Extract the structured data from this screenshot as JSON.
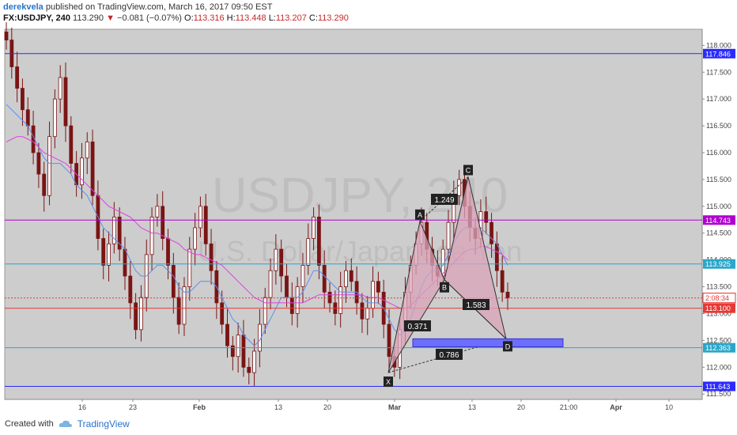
{
  "header": {
    "author": "derekvela",
    "published_text": "published on TradingView.com, March 16, 2017 09:50 EST",
    "symbol": "FX:USDJPY, 240",
    "last": "113.290",
    "change": "−0.081 (−0.07%)",
    "o_label": "O:",
    "o_val": "113.316",
    "h_label": "H:",
    "h_val": "113.448",
    "l_label": "L:",
    "l_val": "113.207",
    "c_label": "C:",
    "c_val": "113.290"
  },
  "footer": {
    "created_with": "Created with",
    "brand": "TradingView",
    "logo_icon": "tradingview-cloud-icon"
  },
  "chart_data": {
    "type": "candlestick",
    "watermark": {
      "line1": "USDJPY, 240",
      "line2": "U.S. Dollar/Japanese Yen"
    },
    "ylim": [
      111.4,
      118.3
    ],
    "y_ticks": [
      "118.000",
      "117.500",
      "117.000",
      "116.500",
      "116.000",
      "115.500",
      "115.000",
      "114.500",
      "114.000",
      "113.500",
      "113.000",
      "112.500",
      "112.000",
      "111.500"
    ],
    "x_ticks": [
      "16",
      "23",
      "Feb",
      "13",
      "20",
      "Mar",
      "13",
      "20",
      "21:00",
      "Apr",
      "10"
    ],
    "horizontal_lines": [
      {
        "value": 117.846,
        "label": "117.846",
        "color": "#2b2bff"
      },
      {
        "value": 114.743,
        "label": "114.743",
        "color": "#b000d0"
      },
      {
        "value": 113.925,
        "label": "113.925",
        "color": "#2aa7c9"
      },
      {
        "value": 113.1,
        "label": "113.100",
        "color": "#e53935"
      },
      {
        "value": 112.363,
        "label": "112.363",
        "color": "#2aa7c9"
      },
      {
        "value": 111.643,
        "label": "111.643",
        "color": "#2b2bff"
      }
    ],
    "price_labels": [
      {
        "value": 113.29,
        "label": "113.290",
        "color": "#e53935"
      },
      {
        "value": 113.1,
        "label": "2:08:34",
        "color": "#e53935"
      }
    ],
    "pattern": {
      "points": {
        "X": 111.9,
        "A": 114.72,
        "B": 113.63,
        "C": 115.55,
        "D": 112.53
      },
      "labels": [
        "X",
        "A",
        "B",
        "C",
        "D"
      ],
      "ratios": [
        "1.249",
        "0.371",
        "1.583",
        "0.786"
      ],
      "fill_color": "#d9a3b8"
    },
    "zone": {
      "top": 112.53,
      "bottom": 112.38,
      "color": "#6d6dff"
    },
    "series": [
      {
        "name": "close",
        "values": [
          118.1,
          117.6,
          117.2,
          116.8,
          116.5,
          116.0,
          115.6,
          115.2,
          116.3,
          117.0,
          117.4,
          116.5,
          115.8,
          115.4,
          115.9,
          116.2,
          115.2,
          114.4,
          113.9,
          114.3,
          114.8,
          114.2,
          113.7,
          113.2,
          112.7,
          113.3,
          114.1,
          114.8,
          115.0,
          114.4,
          113.9,
          113.3,
          112.8,
          113.5,
          114.2,
          114.6,
          115.0,
          114.3,
          113.8,
          113.2,
          112.8,
          112.4,
          112.2,
          112.6,
          112.0,
          111.9,
          112.3,
          112.8,
          113.3,
          113.8,
          114.2,
          113.7,
          113.3,
          113.0,
          113.5,
          113.9,
          114.4,
          114.8,
          113.9,
          113.4,
          113.2,
          113.0,
          113.5,
          113.8,
          113.6,
          113.2,
          112.9,
          113.1,
          113.6,
          113.4,
          112.8,
          112.2,
          112.0,
          112.7,
          113.4,
          113.9,
          114.3,
          114.7,
          114.2,
          113.9,
          113.7,
          114.2,
          114.7,
          115.2,
          115.5,
          115.0,
          114.6,
          114.4,
          114.9,
          114.7,
          114.3,
          113.8,
          113.4,
          113.29
        ]
      },
      {
        "name": "ma-fast",
        "values": [
          116.9,
          116.8,
          116.7,
          116.6,
          116.5,
          116.3,
          116.1,
          115.9,
          115.8,
          115.8,
          115.8,
          115.7,
          115.6,
          115.4,
          115.3,
          115.2,
          115.0,
          114.8,
          114.6,
          114.5,
          114.4,
          114.3,
          114.2,
          114.0,
          113.8,
          113.7,
          113.7,
          113.8,
          113.9,
          113.9,
          113.8,
          113.7,
          113.5,
          113.4,
          113.4,
          113.5,
          113.6,
          113.6,
          113.6,
          113.5,
          113.3,
          113.1,
          112.9,
          112.8,
          112.6,
          112.5,
          112.4,
          112.5,
          112.7,
          112.9,
          113.1,
          113.3,
          113.3,
          113.3,
          113.3,
          113.4,
          113.6,
          113.8,
          113.8,
          113.7,
          113.6,
          113.5,
          113.4,
          113.4,
          113.4,
          113.4,
          113.3,
          113.2,
          113.2,
          113.2,
          113.1,
          112.9,
          112.7,
          112.6,
          112.7,
          112.9,
          113.2,
          113.5,
          113.7,
          113.8,
          113.8,
          113.9,
          114.1,
          114.3,
          114.5,
          114.6,
          114.6,
          114.6,
          114.6,
          114.5,
          114.4,
          114.3,
          114.1,
          113.9
        ]
      },
      {
        "name": "ma-slow",
        "values": [
          116.2,
          116.25,
          116.3,
          116.3,
          116.25,
          116.2,
          116.1,
          116.0,
          115.95,
          115.9,
          115.85,
          115.8,
          115.7,
          115.6,
          115.5,
          115.4,
          115.3,
          115.2,
          115.1,
          115.0,
          114.95,
          114.9,
          114.85,
          114.8,
          114.7,
          114.6,
          114.55,
          114.5,
          114.5,
          114.45,
          114.4,
          114.35,
          114.3,
          114.2,
          114.15,
          114.1,
          114.1,
          114.05,
          114.0,
          113.95,
          113.9,
          113.8,
          113.7,
          113.6,
          113.5,
          113.4,
          113.3,
          113.25,
          113.2,
          113.2,
          113.2,
          113.2,
          113.2,
          113.2,
          113.2,
          113.2,
          113.25,
          113.3,
          113.35,
          113.35,
          113.35,
          113.35,
          113.35,
          113.35,
          113.35,
          113.35,
          113.35,
          113.3,
          113.3,
          113.3,
          113.25,
          113.2,
          113.15,
          113.1,
          113.1,
          113.15,
          113.25,
          113.35,
          113.45,
          113.55,
          113.65,
          113.75,
          113.85,
          113.95,
          114.05,
          114.15,
          114.2,
          114.2,
          114.25,
          114.25,
          114.2,
          114.15,
          114.1,
          114.0
        ]
      }
    ]
  },
  "colors": {
    "plot_bg": "#cdcdcd",
    "candle": "#7a1414",
    "ma_fast": "#5b8ff0",
    "ma_slow": "#e040e0"
  }
}
